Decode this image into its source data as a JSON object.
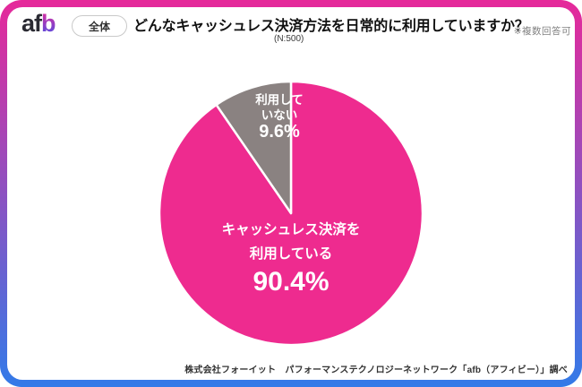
{
  "colors": {
    "brand_pink": "#e6299a",
    "brand_blue": "#337ae8",
    "slice_pink": "#ee2b8f",
    "slice_gray": "#8a8281"
  },
  "header": {
    "logo": {
      "af": "af",
      "b": "b"
    },
    "scope_badge": "全体",
    "title": "どんなキャッシュレス決済方法を日常的に利用していますか？",
    "sample_size_label": "(N:500)",
    "note": "※複数回答可"
  },
  "chart_data": {
    "type": "pie",
    "title": "どんなキャッシュレス決済方法を日常的に利用していますか？",
    "sample_size": 500,
    "multiple_answers_allowed": true,
    "start_angle": "12-oclock",
    "direction": "clockwise",
    "slices": [
      {
        "label": "キャッシュレス決済を利用している",
        "value": 90.4,
        "pct_label": "90.4%",
        "color": "#ee2b8f",
        "label_lines": [
          "キャッシュレス決済を",
          "利用している"
        ]
      },
      {
        "label": "利用していない",
        "value": 9.6,
        "pct_label": "9.6%",
        "color": "#8a8281",
        "label_lines": [
          "利用して",
          "いない"
        ]
      }
    ]
  },
  "footer": {
    "source": "株式会社フォーイット　パフォーマンステクノロジーネットワーク「afb（アフィビー）」調べ"
  }
}
